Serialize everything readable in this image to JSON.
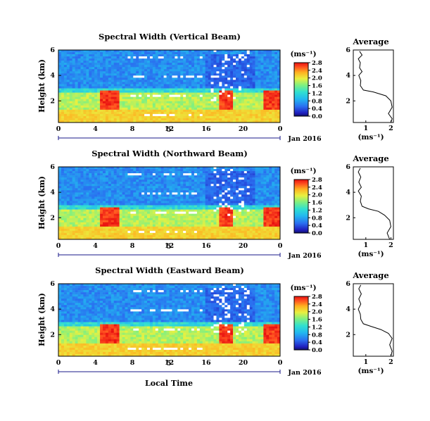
{
  "chart_data": [
    {
      "type": "heatmap",
      "title": "Spectral Width (Vertical Beam)",
      "ylabel": "Height (km)",
      "xticks": [
        "0",
        "4",
        "8",
        "12",
        "16",
        "20",
        "0"
      ],
      "yticks": [
        "2",
        "4",
        "6"
      ],
      "xlim": [
        0,
        24
      ],
      "ylim": [
        0.3,
        6.0
      ],
      "date_label": "5",
      "month_label": "Jan 2016",
      "colorbar": {
        "unit": "(ms⁻¹)",
        "ticks": [
          "0.0",
          "0.4",
          "0.8",
          "1.2",
          "1.6",
          "2.0",
          "2.4",
          "2.8"
        ],
        "range": [
          0,
          2.8
        ]
      },
      "average": {
        "title": "Average",
        "xlabel": "(ms⁻¹)",
        "xticks": [
          "1",
          "2"
        ],
        "yticks": [
          "2",
          "4",
          "6"
        ],
        "xlim": [
          0.5,
          2.1
        ],
        "ylim": [
          0.3,
          6.0
        ],
        "profile": [
          [
            2.0,
            0.3
          ],
          [
            2.05,
            0.6
          ],
          [
            1.9,
            1.0
          ],
          [
            2.05,
            1.5
          ],
          [
            2.0,
            2.0
          ],
          [
            1.8,
            2.4
          ],
          [
            1.3,
            2.7
          ],
          [
            0.9,
            2.85
          ],
          [
            0.78,
            3.2
          ],
          [
            0.8,
            3.6
          ],
          [
            0.72,
            4.0
          ],
          [
            0.85,
            4.3
          ],
          [
            0.75,
            4.6
          ],
          [
            0.78,
            5.0
          ],
          [
            0.7,
            5.3
          ],
          [
            0.85,
            5.6
          ],
          [
            0.75,
            5.9
          ]
        ]
      }
    },
    {
      "type": "heatmap",
      "title": "Spectral Width (Northward Beam)",
      "ylabel": "Height (km)",
      "xticks": [
        "0",
        "4",
        "8",
        "12",
        "16",
        "20",
        "0"
      ],
      "yticks": [
        "2",
        "4",
        "6"
      ],
      "xlim": [
        0,
        24
      ],
      "ylim": [
        0.3,
        6.0
      ],
      "date_label": "5",
      "month_label": "Jan 2016",
      "colorbar": {
        "unit": "(ms⁻¹)",
        "ticks": [
          "0.0",
          "0.4",
          "0.8",
          "1.2",
          "1.6",
          "2.0",
          "2.4",
          "2.8"
        ],
        "range": [
          0,
          2.8
        ]
      },
      "average": {
        "title": "Average",
        "xlabel": "(ms⁻¹)",
        "xticks": [
          "1",
          "2"
        ],
        "yticks": [
          "2",
          "4",
          "6"
        ],
        "xlim": [
          0.5,
          2.1
        ],
        "ylim": [
          0.3,
          6.0
        ],
        "profile": [
          [
            1.95,
            0.3
          ],
          [
            1.85,
            0.8
          ],
          [
            2.0,
            1.3
          ],
          [
            1.95,
            1.8
          ],
          [
            1.75,
            2.2
          ],
          [
            1.5,
            2.5
          ],
          [
            1.1,
            2.7
          ],
          [
            0.85,
            2.9
          ],
          [
            0.78,
            3.3
          ],
          [
            0.82,
            3.7
          ],
          [
            0.7,
            4.1
          ],
          [
            0.82,
            4.4
          ],
          [
            0.72,
            4.8
          ],
          [
            0.8,
            5.2
          ],
          [
            0.7,
            5.6
          ],
          [
            0.78,
            5.9
          ]
        ]
      }
    },
    {
      "type": "heatmap",
      "title": "Spectral Width (Eastward Beam)",
      "ylabel": "Height (km)",
      "xticks": [
        "0",
        "4",
        "8",
        "12",
        "16",
        "20",
        "0"
      ],
      "yticks": [
        "2",
        "4",
        "6"
      ],
      "xlim": [
        0,
        24
      ],
      "ylim": [
        0.3,
        6.0
      ],
      "date_label": "5",
      "month_label": "Jan 2016",
      "colorbar": {
        "unit": "(ms⁻¹)",
        "ticks": [
          "0.0",
          "0.4",
          "0.8",
          "1.2",
          "1.6",
          "2.0",
          "2.4",
          "2.8"
        ],
        "range": [
          0,
          2.8
        ]
      },
      "average": {
        "title": "Average",
        "xlabel": "(ms⁻¹)",
        "xticks": [
          "1",
          "2"
        ],
        "yticks": [
          "2",
          "4",
          "6"
        ],
        "xlim": [
          0.5,
          2.1
        ],
        "ylim": [
          0.3,
          6.0
        ],
        "profile": [
          [
            2.0,
            0.3
          ],
          [
            2.05,
            0.7
          ],
          [
            1.95,
            1.2
          ],
          [
            2.05,
            1.7
          ],
          [
            1.9,
            2.1
          ],
          [
            1.6,
            2.4
          ],
          [
            1.2,
            2.65
          ],
          [
            0.9,
            2.85
          ],
          [
            0.8,
            3.2
          ],
          [
            0.78,
            3.6
          ],
          [
            0.7,
            4.0
          ],
          [
            0.8,
            4.4
          ],
          [
            0.72,
            4.8
          ],
          [
            0.82,
            5.2
          ],
          [
            0.72,
            5.6
          ],
          [
            0.8,
            5.9
          ]
        ]
      }
    }
  ],
  "xlabel": "Local Time"
}
